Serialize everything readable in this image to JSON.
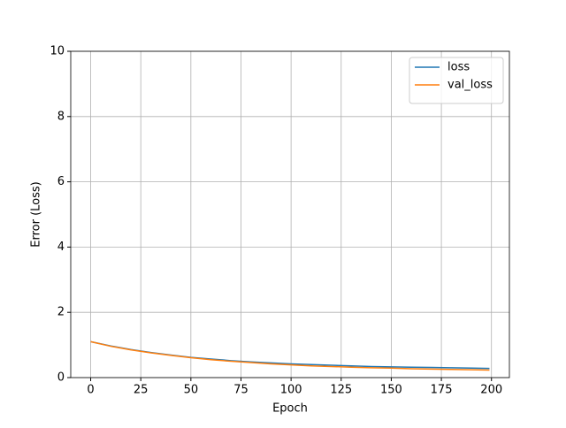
{
  "chart_data": {
    "type": "line",
    "x_label": "Epoch",
    "y_label": "Error (Loss)",
    "x": [
      0,
      10,
      20,
      30,
      40,
      50,
      60,
      70,
      80,
      90,
      100,
      110,
      120,
      130,
      140,
      150,
      160,
      170,
      180,
      190,
      199
    ],
    "series": [
      {
        "name": "loss",
        "color": "#1f77b4",
        "values": [
          1.1,
          0.97,
          0.86,
          0.77,
          0.69,
          0.62,
          0.57,
          0.52,
          0.48,
          0.45,
          0.42,
          0.4,
          0.38,
          0.36,
          0.34,
          0.33,
          0.32,
          0.31,
          0.3,
          0.29,
          0.28
        ]
      },
      {
        "name": "val_loss",
        "color": "#ff7f0e",
        "values": [
          1.1,
          0.96,
          0.85,
          0.76,
          0.68,
          0.61,
          0.55,
          0.5,
          0.46,
          0.42,
          0.39,
          0.36,
          0.34,
          0.32,
          0.3,
          0.29,
          0.27,
          0.26,
          0.25,
          0.24,
          0.23
        ]
      }
    ],
    "xlim": [
      -9.95,
      208.95
    ],
    "xticks": [
      0,
      25,
      50,
      75,
      100,
      125,
      150,
      175,
      200
    ],
    "ylim": [
      0,
      10
    ],
    "yticks": [
      0,
      2,
      4,
      6,
      8,
      10
    ],
    "grid": true,
    "legend": "upper right"
  }
}
